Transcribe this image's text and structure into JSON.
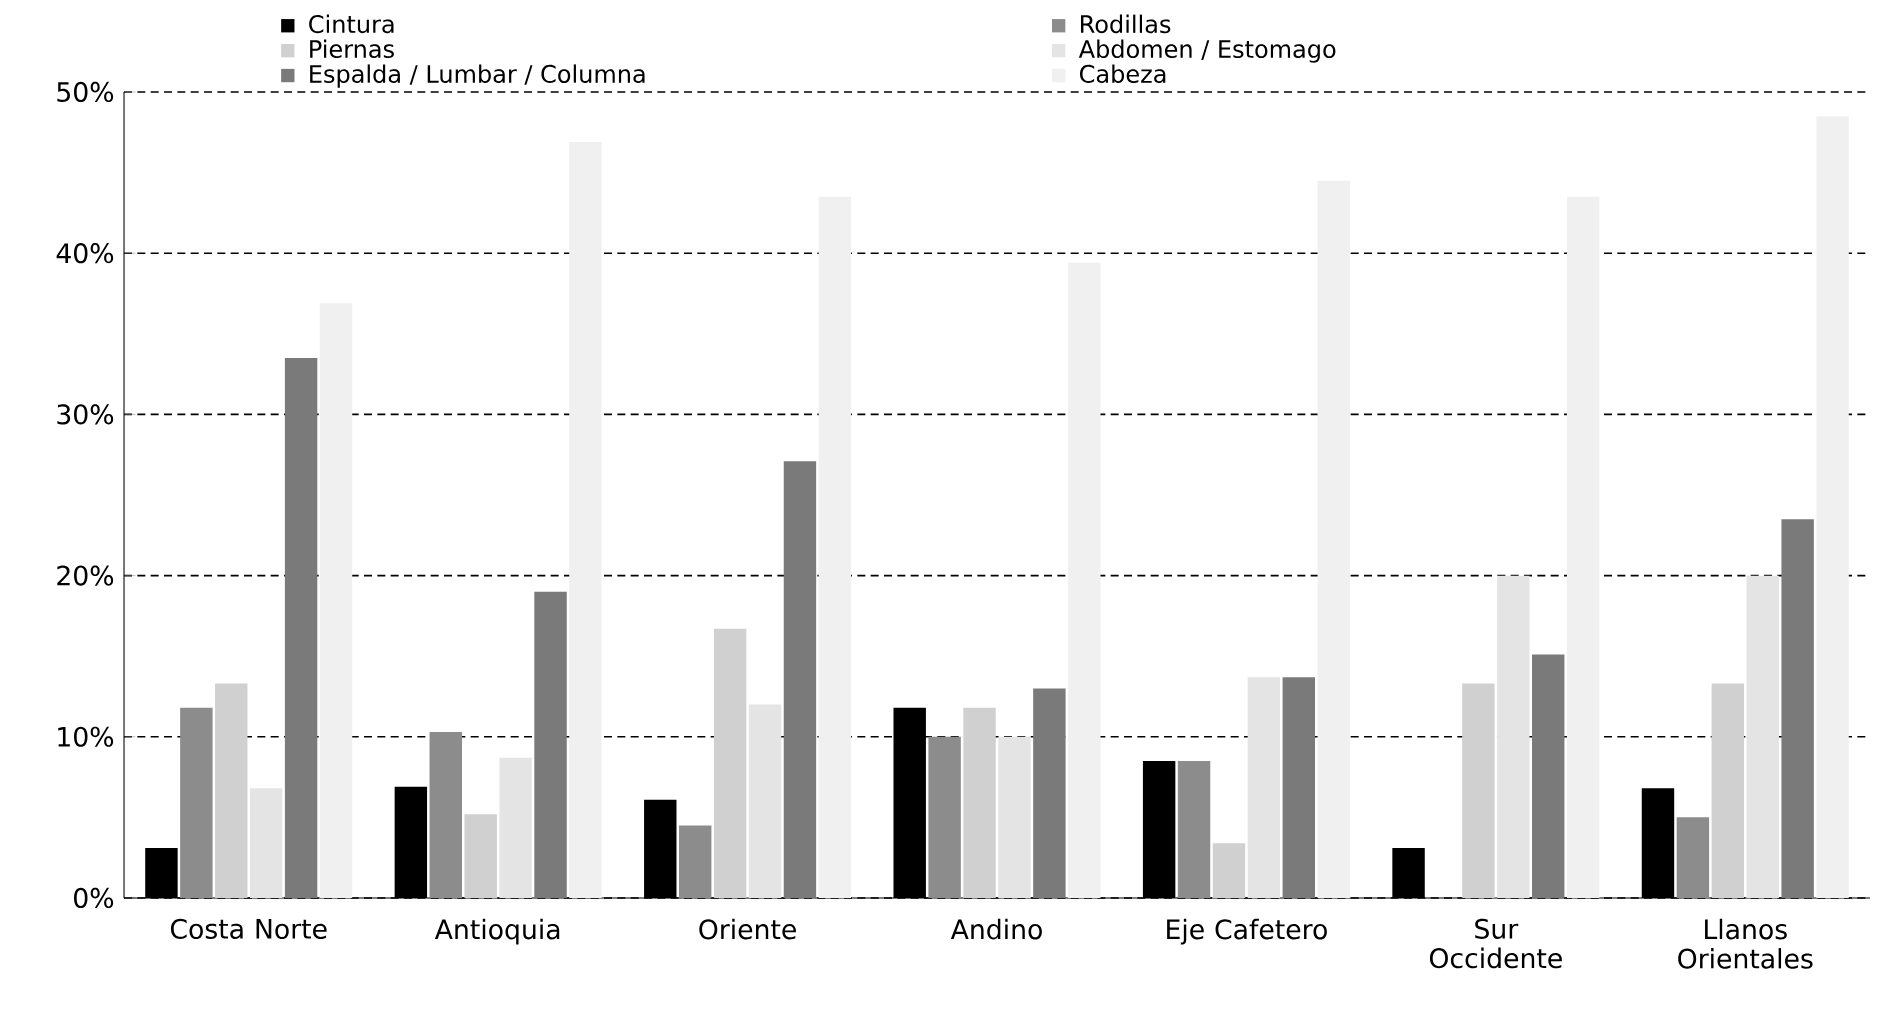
{
  "chart_data": {
    "type": "bar",
    "categories": [
      "Costa Norte",
      "Antioquia",
      "Oriente",
      "Andino",
      "Eje Cafetero",
      "Sur Occidente",
      "Llanos Orientales"
    ],
    "series": [
      {
        "name": "Cintura",
        "color": "#000000",
        "values": [
          3.1,
          6.9,
          6.1,
          11.8,
          8.5,
          3.1,
          6.8
        ]
      },
      {
        "name": "Rodillas",
        "color": "#8c8c8c",
        "values": [
          11.8,
          10.3,
          4.5,
          10.0,
          8.5,
          0,
          5.0
        ]
      },
      {
        "name": "Piernas",
        "color": "#d0d0d0",
        "values": [
          13.3,
          5.2,
          16.7,
          11.8,
          3.4,
          13.3,
          13.3
        ]
      },
      {
        "name": "Abdomen / Estomago",
        "color": "#e4e4e4",
        "values": [
          6.8,
          8.7,
          12.0,
          10.0,
          13.7,
          20.0,
          20.0
        ]
      },
      {
        "name": "Espalda / Lumbar / Columna",
        "color": "#7a7a7a",
        "values": [
          33.5,
          19.0,
          27.1,
          13.0,
          13.7,
          15.1,
          23.5
        ]
      },
      {
        "name": "Cabeza",
        "color": "#f0f0f0",
        "values": [
          36.9,
          46.9,
          43.5,
          39.4,
          44.5,
          43.5,
          48.5
        ]
      }
    ],
    "ylim": [
      0,
      50
    ],
    "yticks": [
      {
        "value": 0,
        "label": "0%"
      },
      {
        "value": 10,
        "label": "10%"
      },
      {
        "value": 20,
        "label": "20%"
      },
      {
        "value": 30,
        "label": "30%"
      },
      {
        "value": 40,
        "label": "40%"
      },
      {
        "value": 50,
        "label": "50%"
      }
    ],
    "grid": "y",
    "legend": "top"
  }
}
